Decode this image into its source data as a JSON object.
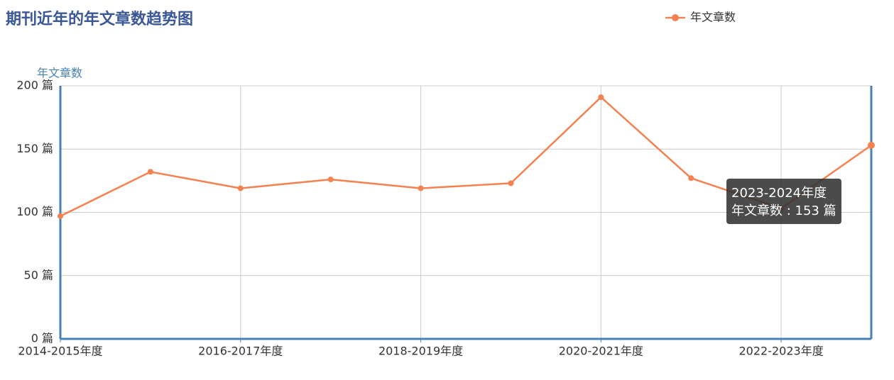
{
  "chart_data": {
    "type": "line",
    "title": "期刊近年的年文章数趋势图",
    "y_label": "年文章数",
    "categories": [
      "2014-2015年度",
      null,
      "2016-2017年度",
      null,
      "2018-2019年度",
      null,
      "2020-2021年度",
      null,
      "2022-2023年度",
      null
    ],
    "series": [
      {
        "name": "年文章数",
        "color": "#f4814f",
        "values": [
          97,
          132,
          119,
          126,
          119,
          123,
          191,
          127,
          103,
          153
        ]
      }
    ],
    "ylim": [
      0,
      200
    ],
    "yticks": [
      {
        "value": 0,
        "label": "0 篇"
      },
      {
        "value": 50,
        "label": "50 篇"
      },
      {
        "value": 100,
        "label": "100 篇"
      },
      {
        "value": 150,
        "label": "150 篇"
      },
      {
        "value": 200,
        "label": "200 篇"
      }
    ],
    "grid": true,
    "legend": "top-right",
    "tooltip": {
      "title": "2023-2024年度",
      "text": "年文章数 : 153 篇"
    }
  }
}
